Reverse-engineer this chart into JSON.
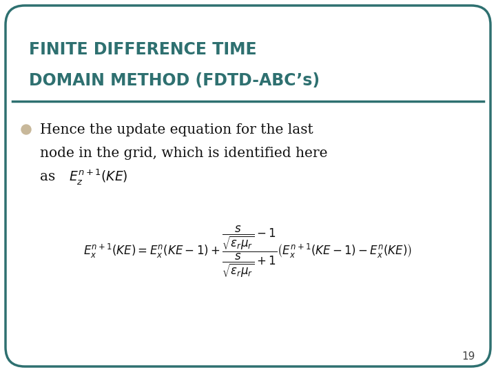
{
  "title_line1": "FINITE DIFFERENCE TIME",
  "title_line2": "DOMAIN METHOD (FDTD-ABC’s)",
  "title_color": "#2E7070",
  "background_color": "#FFFFFF",
  "border_color": "#2E7070",
  "bullet_color": "#C8B89A",
  "page_number": "19",
  "fig_width": 7.2,
  "fig_height": 5.4,
  "dpi": 100,
  "title_fontsize": 17,
  "body_fontsize": 14.5,
  "formula_fontsize": 12
}
